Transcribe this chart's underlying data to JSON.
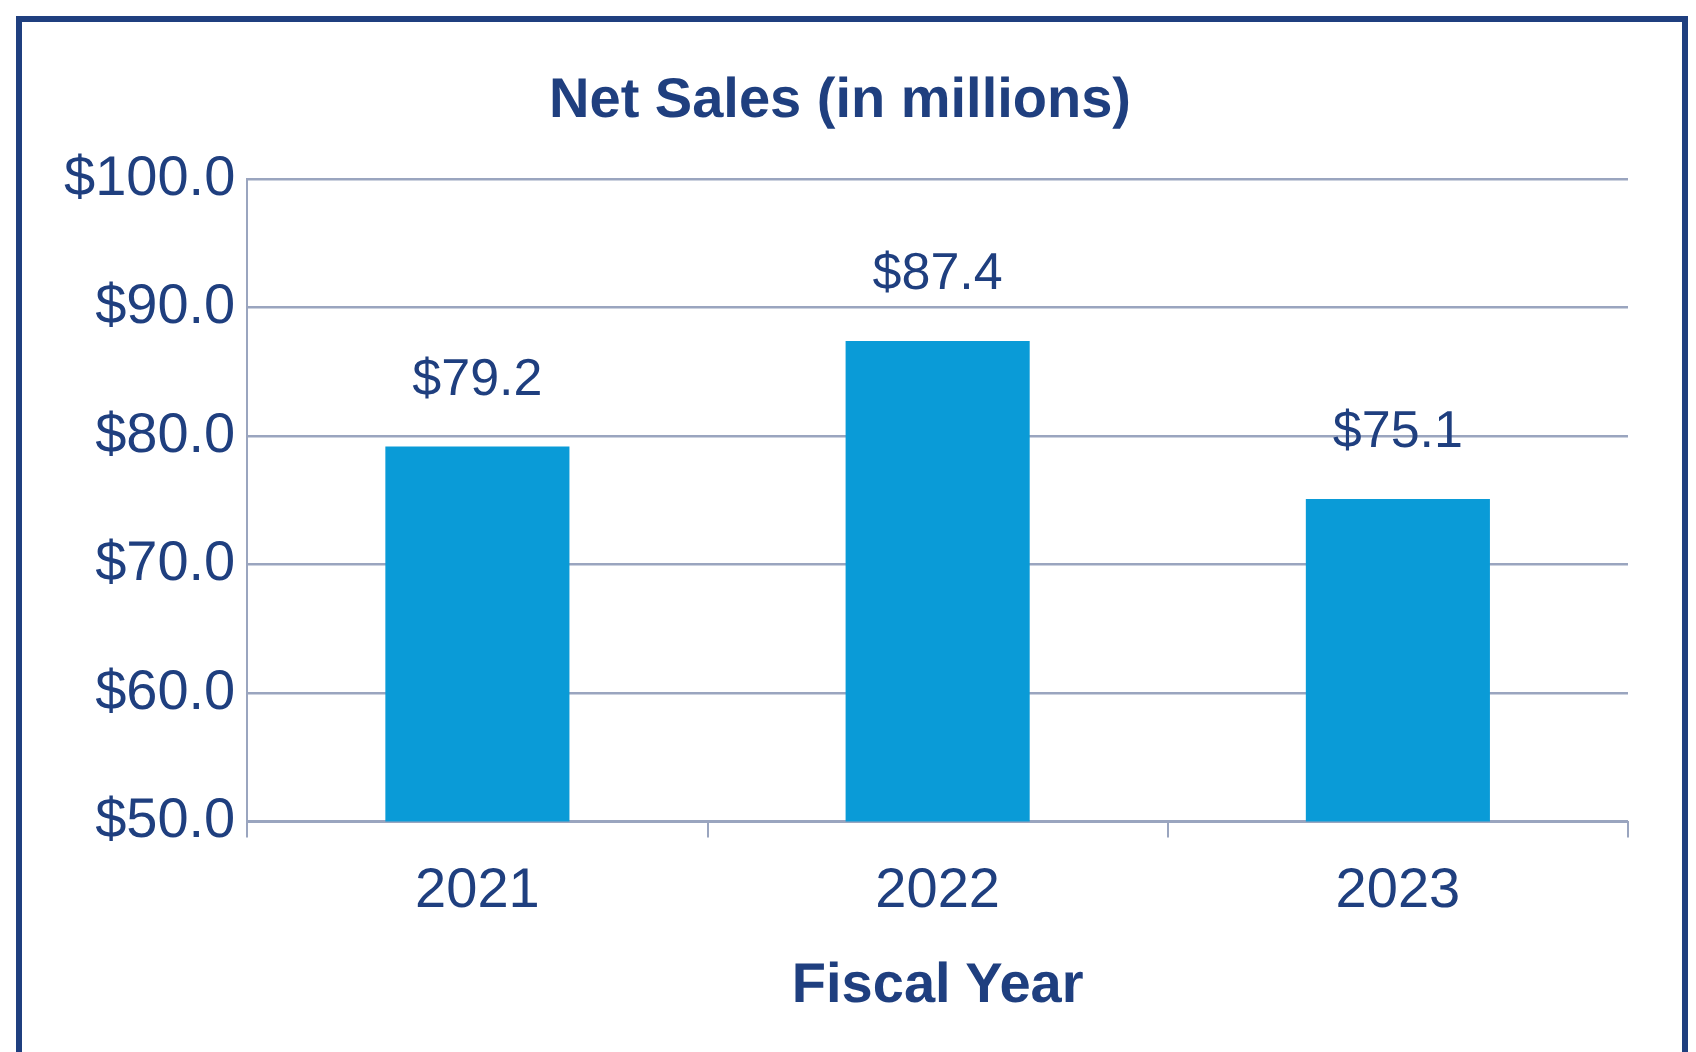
{
  "chart_data": {
    "type": "bar",
    "title": "Net Sales (in millions)",
    "xlabel": "Fiscal Year",
    "categories": [
      "2021",
      "2022",
      "2023"
    ],
    "values": [
      79.2,
      87.4,
      75.1
    ],
    "color": "#0a9bd7",
    "value_labels": [
      "$79.2",
      "$87.4",
      "$75.1"
    ],
    "ylim": [
      50,
      100
    ],
    "yticks": [
      {
        "value": 50,
        "label": "$50.0"
      },
      {
        "value": 60,
        "label": "$60.0"
      },
      {
        "value": 70,
        "label": "$70.0"
      },
      {
        "value": 80,
        "label": "$80.0"
      },
      {
        "value": 90,
        "label": "$90.0"
      },
      {
        "value": 100,
        "label": "$100.0"
      }
    ],
    "grid": "y",
    "legend": false
  }
}
